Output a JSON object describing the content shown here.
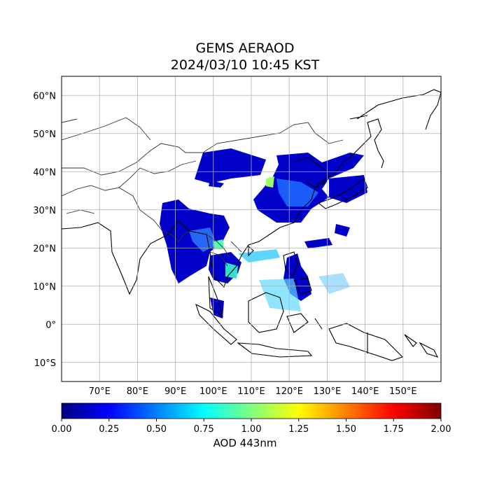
{
  "title": "GEMS AERAOD",
  "subtitle": "2024/03/10 10:45 KST",
  "lat_ticks": [
    "60°N",
    "50°N",
    "40°N",
    "30°N",
    "20°N",
    "10°N",
    "0°",
    "10°S"
  ],
  "lon_ticks": [
    "70°E",
    "80°E",
    "90°E",
    "100°E",
    "110°E",
    "120°E",
    "130°E",
    "140°E",
    "150°E"
  ],
  "colorbar": {
    "label": "AOD 443nm",
    "min": 0.0,
    "max": 2.0,
    "ticks": [
      "0.00",
      "0.25",
      "0.50",
      "0.75",
      "1.00",
      "1.25",
      "1.50",
      "1.75",
      "2.00"
    ],
    "colormap": "jet",
    "colors": [
      "#00007f",
      "#0000ff",
      "#007fff",
      "#00ffff",
      "#7fff7f",
      "#ffff00",
      "#ff7f00",
      "#ff0000",
      "#7f0000"
    ]
  },
  "map": {
    "extent_lon": [
      60,
      160
    ],
    "extent_lat": [
      -15,
      65
    ],
    "grid": true,
    "ocean_color": "#ffffff",
    "coast_color": "#000000",
    "border_color": "#333333",
    "dominant_aod_color": "#0000cc"
  }
}
